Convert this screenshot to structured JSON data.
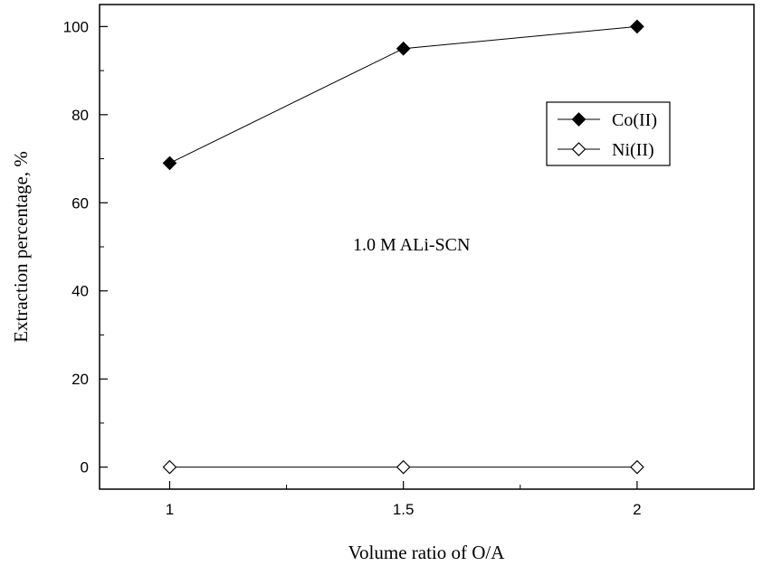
{
  "chart_data": {
    "type": "line",
    "xlabel": "Volume ratio of O/A",
    "ylabel": "Extraction percentage, %",
    "x": [
      1,
      1.5,
      2
    ],
    "x_ticks": [
      "1",
      "1.5",
      "2"
    ],
    "y_ticks": [
      "0",
      "20",
      "40",
      "60",
      "80",
      "100"
    ],
    "xlim": [
      0.85,
      2.25
    ],
    "ylim": [
      -5,
      105
    ],
    "grid": false,
    "legend_position": "top-right",
    "series": [
      {
        "name": "Co(II)",
        "values": [
          69,
          95,
          100
        ],
        "marker": "filled-diamond",
        "color": "#000000"
      },
      {
        "name": "Ni(II)",
        "values": [
          0,
          0,
          0
        ],
        "marker": "open-diamond",
        "color": "#000000"
      }
    ],
    "annotation": "1.0 M ALi-SCN"
  }
}
